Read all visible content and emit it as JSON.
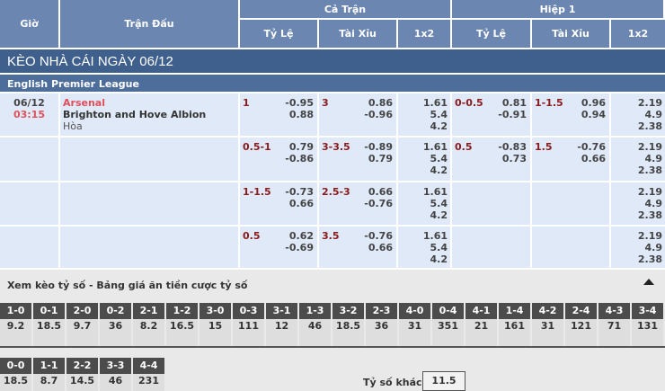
{
  "header": {
    "gio": "Giờ",
    "tran_dau": "Trận Đấu",
    "ca_tran": "Cả Trận",
    "hiep1": "Hiệp 1",
    "ty_le": "Tỷ Lệ",
    "tai_xiu": "Tài Xỉu",
    "x12": "1x2"
  },
  "title": "KÈO NHÀ CÁI NGÀY 06/12",
  "league": "English Premier League",
  "match": {
    "date": "06/12",
    "time": "03:15",
    "home": "Arsenal",
    "away": "Brighton and Hove Albion",
    "draw": "Hòa"
  },
  "rows": [
    {
      "ft_hc": "1",
      "ft_hc_odds": [
        "-0.95",
        "0.88"
      ],
      "ft_ou": "3",
      "ft_ou_odds": [
        "0.86",
        "-0.96"
      ],
      "ft_1x2": [
        "1.61",
        "5.4",
        "4.2"
      ],
      "h1_hc": "0-0.5",
      "h1_hc_odds": [
        "0.81",
        "-0.91"
      ],
      "h1_ou": "1-1.5",
      "h1_ou_odds": [
        "0.96",
        "0.94"
      ],
      "h1_1x2": [
        "2.19",
        "4.9",
        "2.38"
      ]
    },
    {
      "ft_hc": "0.5-1",
      "ft_hc_odds": [
        "0.79",
        "-0.86"
      ],
      "ft_ou": "3-3.5",
      "ft_ou_odds": [
        "-0.89",
        "0.79"
      ],
      "ft_1x2": [
        "1.61",
        "5.4",
        "4.2"
      ],
      "h1_hc": "0.5",
      "h1_hc_odds": [
        "-0.83",
        "0.73"
      ],
      "h1_ou": "1.5",
      "h1_ou_odds": [
        "-0.76",
        "0.66"
      ],
      "h1_1x2": [
        "2.19",
        "4.9",
        "2.38"
      ]
    },
    {
      "ft_hc": "1-1.5",
      "ft_hc_odds": [
        "-0.73",
        "0.66"
      ],
      "ft_ou": "2.5-3",
      "ft_ou_odds": [
        "0.66",
        "-0.76"
      ],
      "ft_1x2": [
        "1.61",
        "5.4",
        "4.2"
      ],
      "h1_hc": "",
      "h1_hc_odds": [],
      "h1_ou": "",
      "h1_ou_odds": [],
      "h1_1x2": [
        "2.19",
        "4.9",
        "2.38"
      ]
    },
    {
      "ft_hc": "0.5",
      "ft_hc_odds": [
        "0.62",
        "-0.69"
      ],
      "ft_ou": "3.5",
      "ft_ou_odds": [
        "-0.76",
        "0.66"
      ],
      "ft_1x2": [
        "1.61",
        "5.4",
        "4.2"
      ],
      "h1_hc": "",
      "h1_hc_odds": [],
      "h1_ou": "",
      "h1_ou_odds": [],
      "h1_1x2": [
        "2.19",
        "4.9",
        "2.38"
      ]
    }
  ],
  "scores": {
    "title": "Xem kèo tỷ số - Bảng giá ăn tiền cược tỷ số",
    "collapse_icon": "triangle-up-icon",
    "row1": [
      [
        "1-0",
        "9.2"
      ],
      [
        "0-1",
        "18.5"
      ],
      [
        "2-0",
        "9.7"
      ],
      [
        "0-2",
        "36"
      ],
      [
        "2-1",
        "8.2"
      ],
      [
        "1-2",
        "16.5"
      ],
      [
        "3-0",
        "15"
      ],
      [
        "0-3",
        "111"
      ],
      [
        "3-1",
        "12"
      ],
      [
        "1-3",
        "46"
      ],
      [
        "3-2",
        "18.5"
      ],
      [
        "2-3",
        "36"
      ],
      [
        "4-0",
        "31"
      ],
      [
        "0-4",
        "351"
      ],
      [
        "4-1",
        "21"
      ],
      [
        "1-4",
        "161"
      ],
      [
        "4-2",
        "31"
      ],
      [
        "2-4",
        "121"
      ],
      [
        "4-3",
        "71"
      ],
      [
        "3-4",
        "131"
      ]
    ],
    "row2": [
      [
        "0-0",
        "18.5"
      ],
      [
        "1-1",
        "8.7"
      ],
      [
        "2-2",
        "14.5"
      ],
      [
        "3-3",
        "46"
      ],
      [
        "4-4",
        "231"
      ]
    ],
    "other_label": "Tỷ số khác",
    "other_value": "11.5"
  }
}
